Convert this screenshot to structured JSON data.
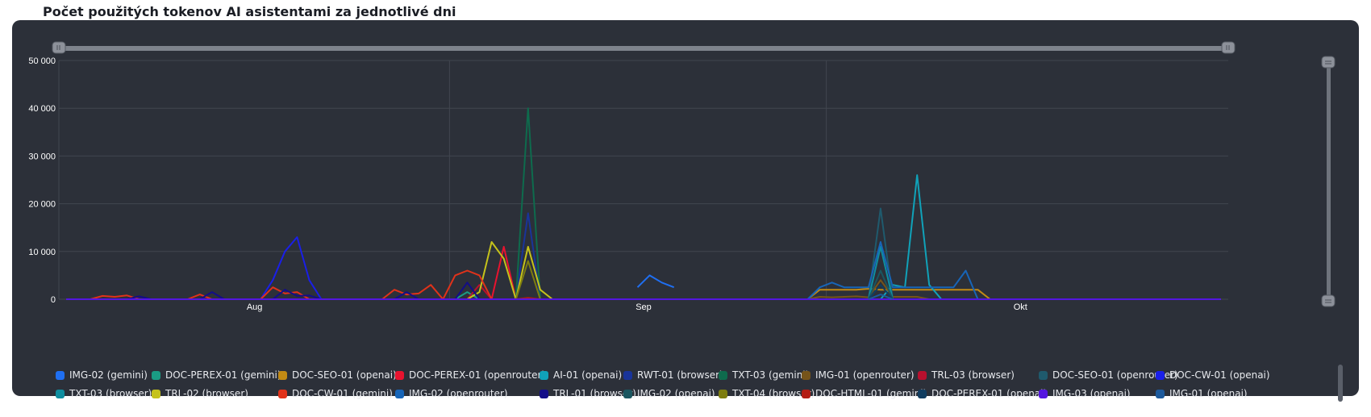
{
  "page_title": "Počet použitých tokenov AI asistentami za jednotlivé dni",
  "colors": {
    "panel_bg": "#2c3039",
    "grid": "#41464f",
    "axis_text": "#ffffff"
  },
  "chart_data": {
    "type": "line",
    "title": "Počet použitých tokenov AI asistentami za jednotlivé dni",
    "xlabel": "",
    "ylabel": "",
    "ylim": [
      0,
      50000
    ],
    "yticks": [
      "0",
      "10 000",
      "20 000",
      "30 000",
      "40 000",
      "50 000"
    ],
    "x_month_labels": [
      "Aug",
      "Sep",
      "Okt"
    ],
    "grid": true,
    "legend_position": "bottom",
    "x_days": 96,
    "series": [
      {
        "name": "IMG-02 (gemini)",
        "color": "#1f6ff2",
        "points": [
          [
            47,
            2500
          ],
          [
            48,
            5000
          ],
          [
            49,
            3500
          ],
          [
            50,
            2500
          ]
        ]
      },
      {
        "name": "DOC-PEREX-01 (gemini)",
        "color": "#1a9c84",
        "points": [
          [
            32,
            0
          ],
          [
            33,
            1500
          ],
          [
            34,
            0
          ]
        ]
      },
      {
        "name": "DOC-SEO-01 (openai)",
        "color": "#c28a14",
        "points": [
          [
            61,
            0
          ],
          [
            62,
            2000
          ],
          [
            63,
            2000
          ],
          [
            64,
            2000
          ],
          [
            65,
            2000
          ],
          [
            66,
            2200
          ],
          [
            67,
            2000
          ],
          [
            68,
            2000
          ],
          [
            69,
            2000
          ],
          [
            70,
            2000
          ],
          [
            71,
            2000
          ],
          [
            72,
            2000
          ],
          [
            73,
            2000
          ],
          [
            74,
            2000
          ],
          [
            75,
            2000
          ],
          [
            76,
            0
          ]
        ]
      },
      {
        "name": "DOC-PEREX-01 (openrouter)",
        "color": "#e8132f",
        "points": [
          [
            35,
            0
          ],
          [
            36,
            11000
          ],
          [
            37,
            0
          ]
        ]
      },
      {
        "name": "AI-01 (openai)",
        "color": "#10a2b9",
        "points": [
          [
            67,
            0
          ],
          [
            68,
            3000
          ],
          [
            69,
            2500
          ],
          [
            70,
            26000
          ],
          [
            71,
            3000
          ],
          [
            72,
            0
          ]
        ]
      },
      {
        "name": "RWT-01 (browser)",
        "color": "#19349a",
        "points": [
          [
            37,
            0
          ],
          [
            38,
            18000
          ],
          [
            39,
            0
          ]
        ]
      },
      {
        "name": "TXT-03 (gemini)",
        "color": "#0e6b4d",
        "points": [
          [
            37,
            0
          ],
          [
            38,
            40000
          ],
          [
            39,
            0
          ]
        ]
      },
      {
        "name": "IMG-01 (openrouter)",
        "color": "#76541a",
        "points": [
          [
            61,
            0
          ],
          [
            62,
            500
          ],
          [
            63,
            400
          ],
          [
            64,
            500
          ],
          [
            65,
            600
          ],
          [
            66,
            400
          ],
          [
            67,
            4000
          ],
          [
            68,
            500
          ],
          [
            69,
            500
          ],
          [
            70,
            500
          ],
          [
            71,
            0
          ]
        ]
      },
      {
        "name": "TRL-03 (browser)",
        "color": "#b8102e",
        "points": [
          [
            33,
            0
          ],
          [
            34,
            3000
          ],
          [
            35,
            0
          ]
        ]
      },
      {
        "name": "DOC-SEO-01 (openrouter)",
        "color": "#1f5a6d",
        "points": [
          [
            66,
            0
          ],
          [
            67,
            19000
          ],
          [
            68,
            0
          ]
        ]
      },
      {
        "name": "DOC-CW-01 (openai)",
        "color": "#1a1fe8",
        "points": [
          [
            16,
            0
          ],
          [
            17,
            4000
          ],
          [
            18,
            10000
          ],
          [
            19,
            13000
          ],
          [
            20,
            4000
          ],
          [
            21,
            0
          ]
        ]
      },
      {
        "name": "TXT-03 (browser)",
        "color": "#0f8ea0",
        "points": [
          [
            66,
            0
          ],
          [
            67,
            11000
          ],
          [
            68,
            0
          ]
        ]
      },
      {
        "name": "TRL-02 (browser)",
        "color": "#c5c21b",
        "points": [
          [
            33,
            0
          ],
          [
            34,
            1500
          ],
          [
            35,
            12000
          ],
          [
            36,
            8500
          ],
          [
            37,
            0
          ],
          [
            38,
            11000
          ],
          [
            39,
            2000
          ],
          [
            40,
            0
          ]
        ]
      },
      {
        "name": "DOC-CW-01 (gemini)",
        "color": "#e0321a",
        "points": [
          [
            2,
            0
          ],
          [
            3,
            700
          ],
          [
            4,
            500
          ],
          [
            5,
            800
          ],
          [
            6,
            0
          ],
          [
            10,
            0
          ],
          [
            11,
            1000
          ],
          [
            12,
            0
          ],
          [
            16,
            0
          ],
          [
            17,
            2500
          ],
          [
            18,
            1200
          ],
          [
            19,
            1500
          ],
          [
            20,
            0
          ],
          [
            26,
            0
          ],
          [
            27,
            2000
          ],
          [
            28,
            1000
          ],
          [
            29,
            1200
          ],
          [
            30,
            3000
          ],
          [
            31,
            0
          ],
          [
            32,
            5000
          ],
          [
            33,
            6000
          ],
          [
            34,
            5000
          ],
          [
            35,
            0
          ]
        ]
      },
      {
        "name": "IMG-02 (openrouter)",
        "color": "#1765b8",
        "points": [
          [
            61,
            0
          ],
          [
            62,
            2500
          ],
          [
            63,
            3500
          ],
          [
            64,
            2500
          ],
          [
            65,
            2500
          ],
          [
            66,
            2500
          ],
          [
            67,
            12000
          ],
          [
            68,
            2500
          ],
          [
            69,
            2500
          ],
          [
            70,
            2500
          ],
          [
            71,
            2500
          ],
          [
            72,
            2500
          ],
          [
            73,
            2500
          ],
          [
            74,
            6000
          ],
          [
            75,
            0
          ]
        ]
      },
      {
        "name": "TRL-01 (browser)",
        "color": "#130d88",
        "points": [
          [
            5,
            0
          ],
          [
            6,
            600
          ],
          [
            7,
            0
          ],
          [
            11,
            0
          ],
          [
            12,
            1500
          ],
          [
            13,
            0
          ],
          [
            17,
            0
          ],
          [
            18,
            2000
          ],
          [
            19,
            700
          ],
          [
            20,
            800
          ],
          [
            21,
            0
          ],
          [
            27,
            0
          ],
          [
            28,
            1500
          ],
          [
            29,
            0
          ],
          [
            32,
            0
          ],
          [
            33,
            3500
          ],
          [
            34,
            0
          ]
        ]
      },
      {
        "name": "IMG-02 (openai)",
        "color": "#1a5660",
        "points": [
          [
            66,
            0
          ],
          [
            67,
            6000
          ],
          [
            68,
            0
          ]
        ]
      },
      {
        "name": "TXT-04 (browser)",
        "color": "#7d7d10",
        "points": [
          [
            36,
            0
          ],
          [
            37,
            0
          ],
          [
            38,
            8000
          ],
          [
            39,
            0
          ]
        ]
      },
      {
        "name": "DOC-HTML-01 (gemini)",
        "color": "#b31d14",
        "points": [
          [
            36,
            0
          ],
          [
            37,
            0
          ],
          [
            38,
            300
          ],
          [
            39,
            0
          ]
        ]
      },
      {
        "name": "DOC-PEREX-01 (openai)",
        "color": "#113d60",
        "points": [
          [
            66,
            0
          ],
          [
            67,
            3000
          ],
          [
            68,
            0
          ]
        ]
      },
      {
        "name": "IMG-03 (openai)",
        "color": "#5416e0",
        "points": [
          [
            0,
            0
          ],
          [
            95,
            0
          ]
        ]
      },
      {
        "name": "IMG-01 (openai)",
        "color": "#1d5a9c",
        "points": [
          [
            66,
            0
          ],
          [
            67,
            1000
          ],
          [
            68,
            0
          ]
        ]
      }
    ]
  }
}
